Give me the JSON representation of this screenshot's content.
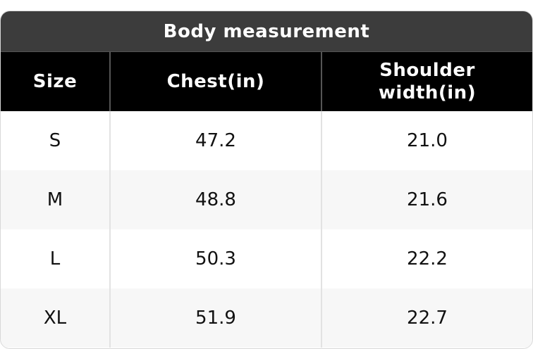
{
  "table": {
    "title": "Body measurement",
    "header": [
      "Size",
      "Chest(in)",
      "Shoulder\nwidth(in)"
    ],
    "rows": [
      [
        "S",
        "47.2",
        "21.0"
      ],
      [
        "M",
        "48.8",
        "21.6"
      ],
      [
        "L",
        "50.3",
        "22.2"
      ],
      [
        "XL",
        "51.9",
        "22.7"
      ]
    ]
  }
}
